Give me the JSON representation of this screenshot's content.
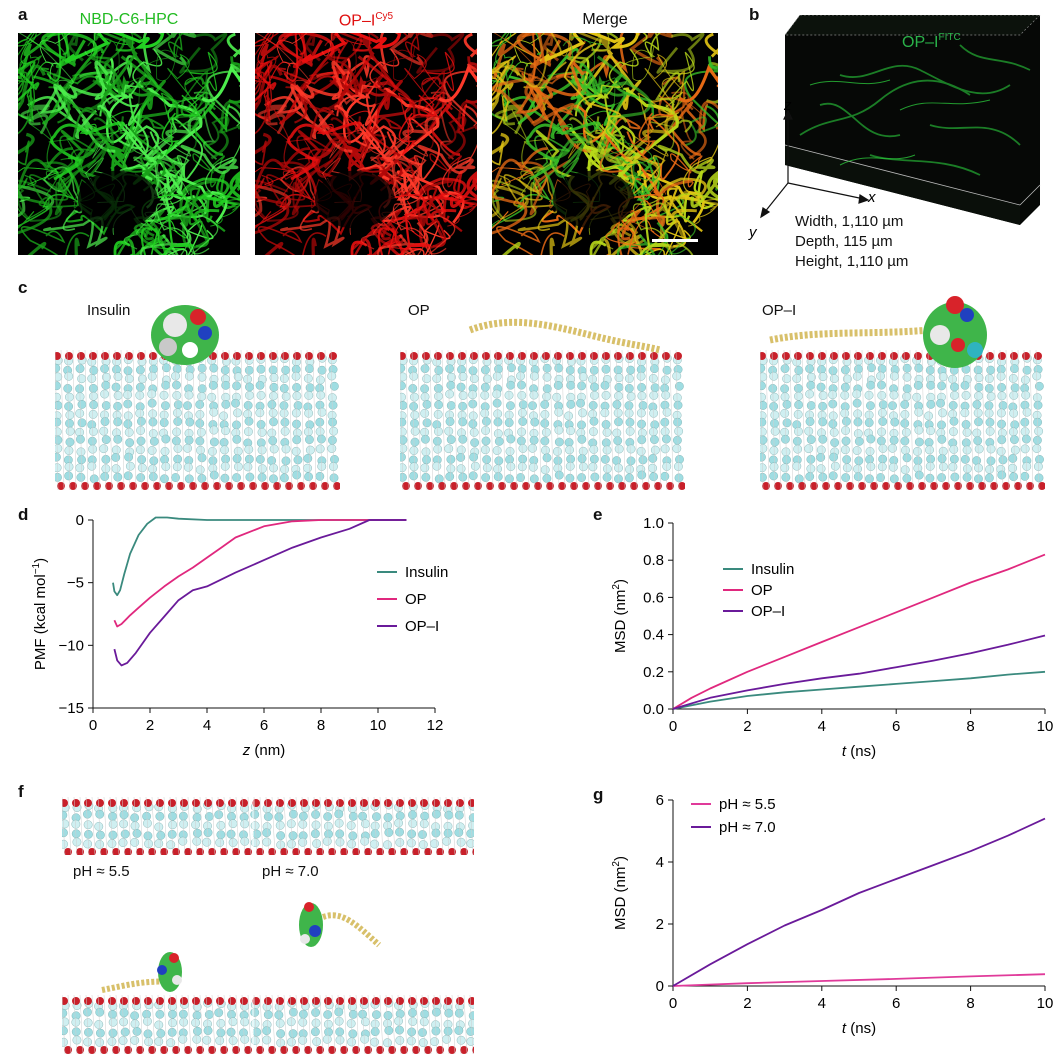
{
  "panels": {
    "a": {
      "label": "a",
      "titles": {
        "green": "NBD-C6-HPC",
        "red_base": "OP–I",
        "red_sup": "Cy5",
        "merge": "Merge"
      }
    },
    "b": {
      "label": "b",
      "probe_base": "OP–I",
      "probe_sup": "FITC",
      "axes": {
        "z": "z",
        "x": "x",
        "y": "y"
      },
      "dims": [
        "Width, 1,110 µm",
        "Depth, 115 µm",
        "Height, 1,110 µm"
      ]
    },
    "c": {
      "label": "c",
      "titles": [
        "Insulin",
        "OP",
        "OP–I"
      ]
    },
    "d": {
      "label": "d"
    },
    "e": {
      "label": "e"
    },
    "f": {
      "label": "f",
      "ph_labels": [
        "pH ≈ 5.5",
        "pH ≈ 7.0"
      ]
    },
    "g": {
      "label": "g"
    }
  },
  "colors": {
    "insulin": "#3a8a7e",
    "op": "#e0287e",
    "opi": "#6a1a9a",
    "ph55": "#e03a9a",
    "ph70": "#6a1a9a",
    "green_fluor": "#22cc22",
    "red_fluor": "#e81010"
  },
  "chart_data": [
    {
      "id": "d",
      "type": "line",
      "xlabel": "z (nm)",
      "ylabel_base": "PMF (kcal mol",
      "ylabel_sup": "−1",
      "ylabel_end": ")",
      "xlim": [
        0,
        12
      ],
      "ylim": [
        -15,
        0
      ],
      "xticks": [
        0,
        2,
        4,
        6,
        8,
        10,
        12
      ],
      "yticks": [
        0,
        -5,
        -10,
        -15
      ],
      "legend_position": "right",
      "series": [
        {
          "name": "Insulin",
          "color": "#3a8a7e",
          "x": [
            0.7,
            0.75,
            0.85,
            0.95,
            1.1,
            1.3,
            1.6,
            1.9,
            2.2,
            2.6,
            3.0,
            4.0,
            5.0,
            6.0,
            7.0,
            8.0,
            9.0,
            10.0,
            11.0
          ],
          "y": [
            -5.0,
            -5.7,
            -6.0,
            -5.6,
            -4.3,
            -2.7,
            -1.2,
            -0.3,
            0.2,
            0.2,
            0.1,
            0.0,
            0.0,
            0.0,
            0.0,
            0.0,
            0.0,
            0.0,
            0.0
          ]
        },
        {
          "name": "OP",
          "color": "#e0287e",
          "x": [
            0.75,
            0.85,
            1.0,
            1.3,
            1.6,
            2.0,
            2.5,
            3.0,
            3.5,
            4.0,
            4.5,
            5.0,
            6.0,
            7.0,
            8.0,
            9.0,
            10.0,
            11.0
          ],
          "y": [
            -8.0,
            -8.5,
            -8.3,
            -7.6,
            -7.0,
            -6.2,
            -5.3,
            -4.5,
            -3.8,
            -3.0,
            -2.2,
            -1.4,
            -0.5,
            -0.1,
            0.0,
            0.0,
            0.0,
            0.0
          ]
        },
        {
          "name": "OP–I",
          "color": "#6a1a9a",
          "x": [
            0.75,
            0.85,
            1.0,
            1.2,
            1.5,
            2.0,
            2.5,
            3.0,
            3.5,
            4.0,
            5.0,
            6.0,
            7.0,
            8.0,
            9.0,
            9.7,
            10.0,
            11.0
          ],
          "y": [
            -10.3,
            -11.2,
            -11.6,
            -11.4,
            -10.6,
            -9.0,
            -7.7,
            -6.4,
            -5.6,
            -5.3,
            -4.2,
            -3.2,
            -2.2,
            -1.4,
            -0.7,
            0.0,
            0.0,
            0.0
          ]
        }
      ]
    },
    {
      "id": "e",
      "type": "line",
      "xlabel": "t (ns)",
      "ylabel_base": "MSD (nm",
      "ylabel_sup": "2",
      "ylabel_end": ")",
      "xlim": [
        0,
        10
      ],
      "ylim": [
        0,
        1.0
      ],
      "xticks": [
        0,
        2,
        4,
        6,
        8,
        10
      ],
      "yticks": [
        0,
        0.2,
        0.4,
        0.6,
        0.8,
        1.0
      ],
      "legend_position": "upper left",
      "series": [
        {
          "name": "Insulin",
          "color": "#3a8a7e",
          "x": [
            0,
            1,
            2,
            3,
            4,
            5,
            6,
            7,
            8,
            9,
            10
          ],
          "y": [
            0,
            0.04,
            0.07,
            0.09,
            0.105,
            0.12,
            0.135,
            0.15,
            0.165,
            0.185,
            0.2
          ]
        },
        {
          "name": "OP",
          "color": "#e0287e",
          "x": [
            0,
            0.5,
            1,
            2,
            3,
            4,
            5,
            6,
            7,
            8,
            9,
            10
          ],
          "y": [
            0,
            0.06,
            0.11,
            0.2,
            0.28,
            0.36,
            0.44,
            0.52,
            0.6,
            0.68,
            0.75,
            0.83
          ]
        },
        {
          "name": "OP–I",
          "color": "#6a1a9a",
          "x": [
            0,
            1,
            2,
            3,
            4,
            5,
            6,
            7,
            8,
            9,
            10
          ],
          "y": [
            0,
            0.06,
            0.1,
            0.135,
            0.165,
            0.19,
            0.225,
            0.26,
            0.3,
            0.345,
            0.395
          ]
        }
      ]
    },
    {
      "id": "g",
      "type": "line",
      "xlabel": "t (ns)",
      "ylabel_base": "MSD (nm",
      "ylabel_sup": "2",
      "ylabel_end": ")",
      "xlim": [
        0,
        10
      ],
      "ylim": [
        0,
        6
      ],
      "xticks": [
        0,
        2,
        4,
        6,
        8,
        10
      ],
      "yticks": [
        0,
        2,
        4,
        6
      ],
      "legend_position": "upper left",
      "series": [
        {
          "name": "pH ≈ 5.5",
          "color": "#e03a9a",
          "x": [
            0,
            2,
            4,
            6,
            8,
            10
          ],
          "y": [
            0,
            0.09,
            0.16,
            0.23,
            0.31,
            0.38
          ]
        },
        {
          "name": "pH ≈ 7.0",
          "color": "#6a1a9a",
          "x": [
            0,
            1,
            2,
            3,
            4,
            5,
            6,
            7,
            8,
            9,
            10
          ],
          "y": [
            0,
            0.7,
            1.35,
            1.95,
            2.45,
            3.0,
            3.45,
            3.9,
            4.35,
            4.85,
            5.4
          ]
        }
      ]
    }
  ]
}
